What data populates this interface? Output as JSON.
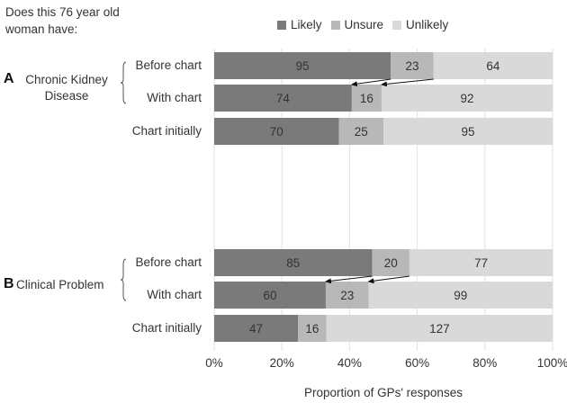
{
  "question": "Does this 76 year old woman have:",
  "legend": [
    {
      "label": "Likely",
      "color": "#7a7a7a"
    },
    {
      "label": "Unsure",
      "color": "#b8b8b8"
    },
    {
      "label": "Unlikely",
      "color": "#d9d9d9"
    }
  ],
  "groups": [
    {
      "letter": "A",
      "name": "Chronic Kidney Disease"
    },
    {
      "letter": "B",
      "name": "Clinical Problem"
    }
  ],
  "chart_data": {
    "type": "bar",
    "orientation": "horizontal",
    "stacked": "percent",
    "categories": [
      "Before chart",
      "With chart",
      "Chart initially",
      "Before chart",
      "With chart",
      "Chart initially"
    ],
    "series": [
      {
        "name": "Likely",
        "values": [
          95,
          74,
          70,
          85,
          60,
          47
        ]
      },
      {
        "name": "Unsure",
        "values": [
          23,
          16,
          25,
          20,
          23,
          16
        ]
      },
      {
        "name": "Unlikely",
        "values": [
          64,
          92,
          95,
          77,
          99,
          127
        ]
      }
    ],
    "xlabel": "Proportion of GPs' responses",
    "xticks": [
      "0%",
      "20%",
      "40%",
      "60%",
      "80%",
      "100%"
    ],
    "xlim": [
      0,
      100
    ],
    "grid": true,
    "legend_position": "top",
    "annotations": "arrows from Before chart to With chart showing shift in Likely proportion"
  }
}
